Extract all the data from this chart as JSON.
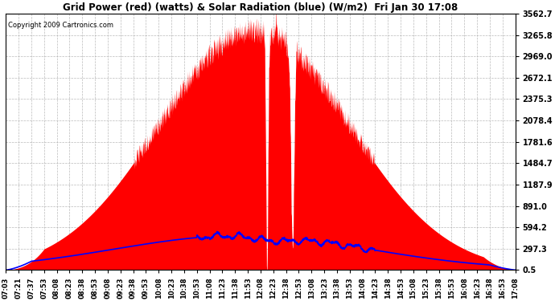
{
  "title": "Grid Power (red) (watts) & Solar Radiation (blue) (W/m2)  Fri Jan 30 17:08",
  "copyright": "Copyright 2009 Cartronics.com",
  "yticks": [
    0.5,
    297.3,
    594.2,
    891.0,
    1187.9,
    1484.7,
    1781.6,
    2078.4,
    2375.3,
    2672.1,
    2969.0,
    3265.8,
    3562.7
  ],
  "ymin": 0.5,
  "ymax": 3562.7,
  "background_color": "#ffffff",
  "plot_bg_color": "#ffffff",
  "grid_color": "#aaaaaa",
  "fill_color": "#ff0000",
  "line_color": "#0000ff",
  "xtick_labels": [
    "07:03",
    "07:21",
    "07:37",
    "07:53",
    "08:08",
    "08:23",
    "08:38",
    "08:53",
    "09:08",
    "09:23",
    "09:38",
    "09:53",
    "10:08",
    "10:23",
    "10:38",
    "10:53",
    "11:08",
    "11:23",
    "11:38",
    "11:53",
    "12:08",
    "12:23",
    "12:38",
    "12:53",
    "13:08",
    "13:23",
    "13:38",
    "13:53",
    "14:08",
    "14:23",
    "14:38",
    "14:53",
    "15:08",
    "15:23",
    "15:38",
    "15:53",
    "16:08",
    "16:23",
    "16:38",
    "16:53",
    "17:08"
  ]
}
